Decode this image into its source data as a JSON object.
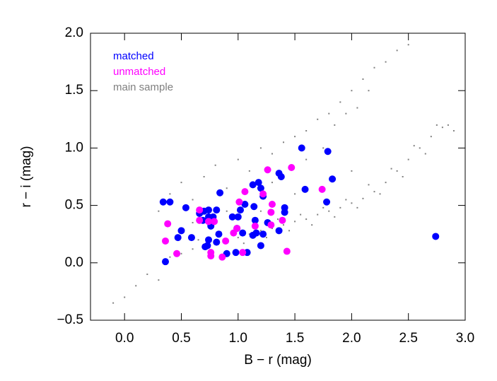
{
  "chart_data": {
    "type": "scatter",
    "x_label": "B − r (mag)",
    "y_label": "r − i (mag)",
    "xlim": [
      -0.3,
      3.0
    ],
    "ylim": [
      -0.5,
      2.0
    ],
    "xticks": [
      {
        "value": 0,
        "label": "0.0"
      },
      {
        "value": 0.5,
        "label": "0.5"
      },
      {
        "value": 1,
        "label": "1.0"
      },
      {
        "value": 1.5,
        "label": "1.5"
      },
      {
        "value": 2,
        "label": "2.0"
      },
      {
        "value": 2.5,
        "label": "2.5"
      },
      {
        "value": 3,
        "label": "3.0"
      }
    ],
    "yticks": [
      {
        "value": -0.5,
        "label": "−0.5"
      },
      {
        "value": 0,
        "label": "0.0"
      },
      {
        "value": 0.5,
        "label": "0.5"
      },
      {
        "value": 1,
        "label": "1.0"
      },
      {
        "value": 1.5,
        "label": "1.5"
      },
      {
        "value": 2,
        "label": "2.0"
      }
    ],
    "legend": "upper left",
    "series": [
      {
        "name": "main sample",
        "color": "#808080",
        "marker": "dot",
        "x": [
          0.2,
          0.4,
          0.5,
          0.6,
          0.7,
          0.8,
          0.9,
          1.0,
          1.1,
          1.2,
          1.3,
          1.4,
          1.5,
          1.6,
          1.7,
          1.8,
          1.9,
          2.0,
          2.1,
          2.2,
          2.3,
          2.4,
          2.5,
          2.6,
          2.7,
          2.8,
          2.85,
          0.65,
          0.75,
          0.95,
          1.05,
          1.15,
          1.25,
          1.35,
          1.45,
          1.55,
          1.65,
          1.75,
          1.85,
          1.95,
          2.05,
          2.15,
          2.25,
          2.35,
          2.45,
          2.55,
          2.65,
          2.75,
          2.9,
          0.3,
          0.4,
          0.5,
          0.6,
          0.7,
          0.8,
          0.9,
          1.0,
          1.1,
          1.2,
          1.3,
          1.4,
          1.5,
          1.6,
          1.7,
          1.8,
          1.9,
          2.0,
          2.1,
          2.2,
          2.3,
          2.4,
          2.5,
          1.75,
          1.85,
          1.95,
          2.05,
          2.15,
          1.6,
          1.3,
          0.9,
          0.6,
          0.1,
          0.0,
          -0.1,
          0.3,
          1.2,
          1.5,
          2.0,
          0.8
        ],
        "values": [
          -0.1,
          0.05,
          0.08,
          0.12,
          0.15,
          0.18,
          0.2,
          0.22,
          0.25,
          0.28,
          0.3,
          0.33,
          0.36,
          0.38,
          0.42,
          0.45,
          0.48,
          0.52,
          0.56,
          0.62,
          0.7,
          0.8,
          0.9,
          1.0,
          1.1,
          1.18,
          1.2,
          0.2,
          0.1,
          0.28,
          0.17,
          0.3,
          0.22,
          0.38,
          0.28,
          0.42,
          0.33,
          0.48,
          0.4,
          0.55,
          0.48,
          0.68,
          0.6,
          0.82,
          0.75,
          1.02,
          0.95,
          1.2,
          1.15,
          0.45,
          0.6,
          0.7,
          0.55,
          0.75,
          0.85,
          0.65,
          0.9,
          0.8,
          1.0,
          0.95,
          1.05,
          1.1,
          1.15,
          1.25,
          1.3,
          1.4,
          1.5,
          1.6,
          1.7,
          1.75,
          1.85,
          1.9,
          1.0,
          1.2,
          1.3,
          1.35,
          1.5,
          0.9,
          0.7,
          0.45,
          0.35,
          -0.2,
          -0.3,
          -0.35,
          -0.15,
          0.45,
          0.6,
          0.8,
          0.35
        ]
      },
      {
        "name": "matched",
        "color": "#0000ff",
        "marker": "circle",
        "x": [
          0.34,
          0.4,
          0.36,
          0.54,
          0.5,
          0.47,
          0.59,
          0.66,
          0.7,
          0.69,
          0.74,
          0.78,
          0.76,
          0.74,
          0.81,
          0.84,
          0.74,
          0.71,
          0.73,
          0.81,
          0.9,
          0.98,
          1.08,
          0.95,
          1.0,
          1.02,
          1.06,
          1.04,
          1.13,
          1.16,
          1.14,
          1.13,
          1.18,
          1.2,
          1.22,
          1.22,
          1.2,
          1.26,
          1.15,
          1.36,
          1.36,
          1.38,
          1.41,
          1.41,
          1.56,
          1.59,
          1.79,
          1.83,
          1.78,
          2.74,
          0.99,
          0.83
        ],
        "values": [
          0.53,
          0.53,
          0.01,
          0.48,
          0.28,
          0.22,
          0.22,
          0.43,
          0.45,
          0.37,
          0.4,
          0.4,
          0.32,
          0.46,
          0.46,
          0.61,
          0.2,
          0.14,
          0.15,
          0.18,
          0.08,
          0.09,
          0.09,
          0.4,
          0.4,
          0.46,
          0.51,
          0.26,
          0.24,
          0.26,
          0.49,
          0.68,
          0.7,
          0.65,
          0.58,
          0.25,
          0.15,
          0.35,
          0.37,
          0.28,
          0.78,
          0.75,
          0.48,
          0.44,
          1.0,
          0.64,
          0.97,
          0.73,
          0.53,
          0.23,
          0.3,
          0.25
        ]
      },
      {
        "name": "unmatched",
        "color": "#ff00ff",
        "marker": "circle",
        "x": [
          0.36,
          0.38,
          0.46,
          0.66,
          0.66,
          0.74,
          0.79,
          0.76,
          0.76,
          0.86,
          0.89,
          0.96,
          0.99,
          1.01,
          1.06,
          1.04,
          1.15,
          1.22,
          1.26,
          1.29,
          1.3,
          1.29,
          1.39,
          1.47,
          1.43,
          1.74
        ],
        "values": [
          0.19,
          0.34,
          0.08,
          0.46,
          0.37,
          0.36,
          0.36,
          0.09,
          0.06,
          0.05,
          0.19,
          0.26,
          0.3,
          0.53,
          0.62,
          0.09,
          0.32,
          0.6,
          0.81,
          0.44,
          0.51,
          0.33,
          0.37,
          0.83,
          0.1,
          0.64
        ]
      }
    ]
  }
}
